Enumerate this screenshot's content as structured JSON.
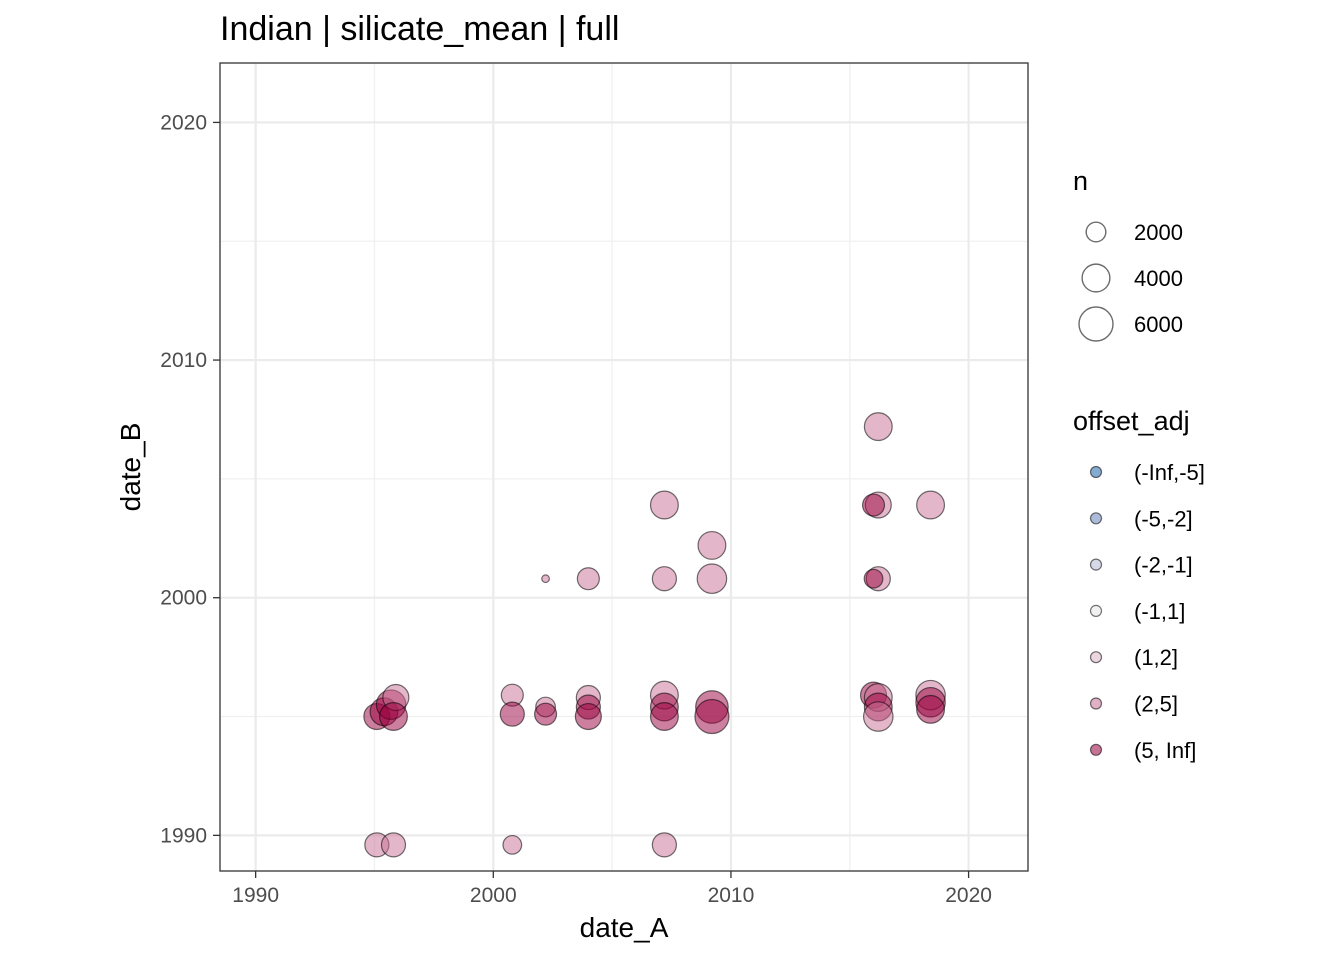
{
  "chart_data": {
    "type": "scatter",
    "title": "Indian | silicate_mean | full",
    "xlabel": "date_A",
    "ylabel": "date_B",
    "xlim": [
      1988.5,
      2022.5
    ],
    "ylim": [
      1988.5,
      2022.5
    ],
    "x_ticks": [
      1990,
      2000,
      2010,
      2020
    ],
    "y_ticks": [
      1990,
      2000,
      2010,
      2020
    ],
    "x_tick_labels": [
      "1990",
      "2000",
      "2010",
      "2020"
    ],
    "y_tick_labels": [
      "1990",
      "2000",
      "2010",
      "2020"
    ],
    "grid": true,
    "legend_placement": "right",
    "size_legend": {
      "title": "n",
      "entries": [
        {
          "label": "2000",
          "value": 2000
        },
        {
          "label": "4000",
          "value": 4000
        },
        {
          "label": "6000",
          "value": 6000
        }
      ]
    },
    "color_legend": {
      "title": "offset_adj",
      "entries": [
        {
          "label": "(-Inf,-5]",
          "color": "#2166ac"
        },
        {
          "label": "(-5,-2]",
          "color": "#6a84bb"
        },
        {
          "label": "(-2,-1]",
          "color": "#b8b9d6"
        },
        {
          "label": "(-1,1]",
          "color": "#e6e6e6"
        },
        {
          "label": "(1,2]",
          "color": "#dbb3c2"
        },
        {
          "label": "(2,5]",
          "color": "#c86f93"
        },
        {
          "label": "(5, Inf]",
          "color": "#99003d"
        }
      ]
    },
    "points": [
      {
        "x": 1995.1,
        "y": 1995.0,
        "n": 3500,
        "class": "(5, Inf]"
      },
      {
        "x": 1995.4,
        "y": 1995.2,
        "n": 4000,
        "class": "(5, Inf]"
      },
      {
        "x": 1995.7,
        "y": 1995.5,
        "n": 4500,
        "class": "(5, Inf]"
      },
      {
        "x": 1995.9,
        "y": 1995.8,
        "n": 3500,
        "class": "(2,5]"
      },
      {
        "x": 1995.8,
        "y": 1995.0,
        "n": 4000,
        "class": "(5, Inf]"
      },
      {
        "x": 1995.1,
        "y": 1989.6,
        "n": 3000,
        "class": "(2,5]"
      },
      {
        "x": 1995.8,
        "y": 1989.6,
        "n": 3000,
        "class": "(2,5]"
      },
      {
        "x": 2000.8,
        "y": 1995.9,
        "n": 2500,
        "class": "(2,5]"
      },
      {
        "x": 2000.8,
        "y": 1995.1,
        "n": 3000,
        "class": "(5, Inf]"
      },
      {
        "x": 2000.8,
        "y": 1989.6,
        "n": 1800,
        "class": "(2,5]"
      },
      {
        "x": 2002.2,
        "y": 1995.4,
        "n": 2000,
        "class": "(2,5]"
      },
      {
        "x": 2002.2,
        "y": 1995.1,
        "n": 2500,
        "class": "(5, Inf]"
      },
      {
        "x": 2002.2,
        "y": 2000.8,
        "n": 300,
        "class": "(2,5]"
      },
      {
        "x": 2004.0,
        "y": 1995.8,
        "n": 3000,
        "class": "(2,5]"
      },
      {
        "x": 2004.0,
        "y": 1995.4,
        "n": 3000,
        "class": "(5, Inf]"
      },
      {
        "x": 2004.0,
        "y": 1995.0,
        "n": 3500,
        "class": "(5, Inf]"
      },
      {
        "x": 2004.0,
        "y": 2000.8,
        "n": 2500,
        "class": "(2,5]"
      },
      {
        "x": 2007.2,
        "y": 1995.9,
        "n": 4000,
        "class": "(2,5]"
      },
      {
        "x": 2007.2,
        "y": 1995.4,
        "n": 4000,
        "class": "(5, Inf]"
      },
      {
        "x": 2007.2,
        "y": 1995.0,
        "n": 4000,
        "class": "(5, Inf]"
      },
      {
        "x": 2007.2,
        "y": 1989.6,
        "n": 3000,
        "class": "(2,5]"
      },
      {
        "x": 2007.2,
        "y": 2000.8,
        "n": 3000,
        "class": "(2,5]"
      },
      {
        "x": 2007.2,
        "y": 2003.9,
        "n": 4000,
        "class": "(2,5]"
      },
      {
        "x": 2009.2,
        "y": 1995.4,
        "n": 5500,
        "class": "(5, Inf]"
      },
      {
        "x": 2009.2,
        "y": 1995.0,
        "n": 6000,
        "class": "(5, Inf]"
      },
      {
        "x": 2009.2,
        "y": 2000.8,
        "n": 4500,
        "class": "(2,5]"
      },
      {
        "x": 2009.2,
        "y": 2002.2,
        "n": 4000,
        "class": "(2,5]"
      },
      {
        "x": 2016.0,
        "y": 1995.9,
        "n": 3500,
        "class": "(5, Inf]"
      },
      {
        "x": 2016.2,
        "y": 1995.8,
        "n": 4000,
        "class": "(2,5]"
      },
      {
        "x": 2016.2,
        "y": 1995.4,
        "n": 4000,
        "class": "(5, Inf]"
      },
      {
        "x": 2016.2,
        "y": 1995.0,
        "n": 4500,
        "class": "(2,5]"
      },
      {
        "x": 2016.2,
        "y": 2000.8,
        "n": 3000,
        "class": "(2,5]"
      },
      {
        "x": 2016.0,
        "y": 2000.8,
        "n": 1800,
        "class": "(5, Inf]"
      },
      {
        "x": 2016.2,
        "y": 2003.9,
        "n": 3500,
        "class": "(2,5]"
      },
      {
        "x": 2016.0,
        "y": 2003.9,
        "n": 2500,
        "class": "(5, Inf]"
      },
      {
        "x": 2016.2,
        "y": 2007.2,
        "n": 4000,
        "class": "(2,5]"
      },
      {
        "x": 2018.4,
        "y": 1995.9,
        "n": 4500,
        "class": "(2,5]"
      },
      {
        "x": 2018.4,
        "y": 1995.6,
        "n": 4500,
        "class": "(5, Inf]"
      },
      {
        "x": 2018.4,
        "y": 1995.3,
        "n": 4000,
        "class": "(5, Inf]"
      },
      {
        "x": 2018.4,
        "y": 2003.9,
        "n": 4000,
        "class": "(2,5]"
      }
    ]
  }
}
